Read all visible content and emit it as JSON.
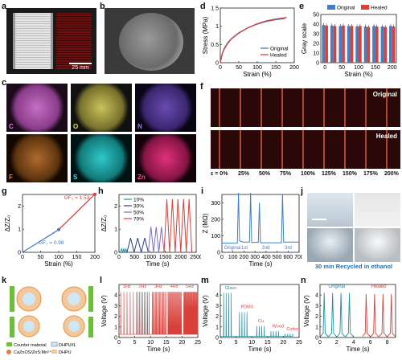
{
  "panels": {
    "a": "a",
    "b": "b",
    "c": "c",
    "d": "d",
    "e": "e",
    "f": "f",
    "g": "g",
    "h": "h",
    "i": "i",
    "j": "j",
    "k": "k",
    "l": "l",
    "m": "m",
    "n": "n"
  },
  "photo": {
    "scale": "25 mm"
  },
  "eds": [
    "C",
    "O",
    "N",
    "F",
    "S",
    "Zn"
  ],
  "f_strip": {
    "original": "Original",
    "healed": "Healed",
    "strains": [
      "ε = 0%",
      "25%",
      "50%",
      "75%",
      "100%",
      "125%",
      "150%",
      "175%",
      "200%"
    ]
  },
  "j_caption": "30 min Recycled in ethanol",
  "k_legend": [
    "Counter material",
    "CaZnOS/ZnS:Mn²⁺",
    "DHPU/IL",
    "DHPU"
  ],
  "colors": {
    "blue": "#3f7fc4",
    "red": "#d9403a",
    "teal": "#1f8fa6",
    "navy": "#2c3e8c"
  },
  "chart_data": [
    {
      "id": "d",
      "type": "line",
      "xlabel": "Strain (%)",
      "ylabel": "Stress (MPa)",
      "xlim": [
        0,
        200
      ],
      "ylim": [
        0,
        1.5
      ],
      "xticks": [
        0,
        50,
        100,
        150,
        200
      ],
      "yticks": [
        0.0,
        0.5,
        1.0,
        1.5
      ],
      "legend": [
        "Original",
        "Healed"
      ],
      "series": [
        {
          "name": "Original",
          "x": [
            0,
            5,
            10,
            20,
            30,
            50,
            75,
            100,
            125,
            150,
            175
          ],
          "y": [
            0,
            0.25,
            0.38,
            0.55,
            0.66,
            0.82,
            0.96,
            1.06,
            1.13,
            1.18,
            1.21
          ]
        },
        {
          "name": "Healed",
          "x": [
            0,
            5,
            10,
            20,
            30,
            50,
            75,
            100,
            125,
            150,
            180
          ],
          "y": [
            0,
            0.23,
            0.36,
            0.53,
            0.65,
            0.81,
            0.96,
            1.07,
            1.15,
            1.2,
            1.24
          ]
        }
      ]
    },
    {
      "id": "e",
      "type": "bar",
      "xlabel": "Strain (%)",
      "ylabel": "Gray scale",
      "ylim": [
        0,
        50
      ],
      "yticks": [
        0,
        10,
        20,
        30,
        40,
        50
      ],
      "categories": [
        "0",
        "25",
        "50",
        "75",
        "100",
        "125",
        "150",
        "175",
        "200"
      ],
      "legend": [
        "Original",
        "Healed"
      ],
      "series": [
        {
          "name": "Original",
          "values": [
            39,
            38.5,
            38,
            38,
            37.5,
            37.5,
            38,
            37.5,
            38
          ]
        },
        {
          "name": "Healed",
          "values": [
            38.5,
            38,
            38.5,
            38,
            38,
            37,
            37.5,
            37,
            37.5
          ]
        }
      ]
    },
    {
      "id": "g",
      "type": "line",
      "xlabel": "Strain (%)",
      "ylabel": "ΔZ/Z₀",
      "xlim": [
        0,
        200
      ],
      "ylim": [
        0,
        2.5
      ],
      "xticks": [
        0,
        50,
        100,
        150,
        200
      ],
      "yticks": [
        0,
        1,
        2
      ],
      "annotations": [
        "GF₂ = 1.53",
        "GF₁ = 0.98"
      ],
      "series": [
        {
          "name": "blue",
          "x": [
            0,
            20,
            40,
            60,
            80,
            100
          ],
          "y": [
            0,
            0.2,
            0.39,
            0.59,
            0.78,
            0.98
          ]
        },
        {
          "name": "red",
          "x": [
            100,
            125,
            150,
            175,
            200
          ],
          "y": [
            0.98,
            1.36,
            1.74,
            2.13,
            2.51
          ]
        }
      ]
    },
    {
      "id": "h",
      "type": "line",
      "xlabel": "Time (s)",
      "ylabel": "ΔZ/Z₀",
      "xlim": [
        0,
        2500
      ],
      "ylim": [
        0,
        2.5
      ],
      "xticks": [
        0,
        500,
        1000,
        1500,
        2000,
        2500
      ],
      "yticks": [
        0,
        1,
        2
      ],
      "legend": [
        "10%",
        "30%",
        "50%",
        "70%"
      ],
      "series": [
        {
          "name": "10%",
          "start": 50,
          "period": 70,
          "cycles": 3,
          "amp": 0.15
        },
        {
          "name": "30%",
          "start": 260,
          "period": 230,
          "cycles": 3,
          "amp": 0.62
        },
        {
          "name": "50%",
          "start": 950,
          "period": 170,
          "cycles": 3,
          "amp": 1.1
        },
        {
          "name": "70%",
          "start": 1460,
          "period": 180,
          "cycles": 5,
          "amp": 2.3
        }
      ]
    },
    {
      "id": "i",
      "type": "line",
      "xlabel": "Time (s)",
      "ylabel": "Z (MΩ)",
      "xlim": [
        0,
        700
      ],
      "ylim": [
        0,
        350
      ],
      "xticks": [
        0,
        100,
        200,
        300,
        400,
        500,
        600,
        700
      ],
      "yticks": [
        0,
        100,
        200,
        300
      ],
      "annotations": [
        "Original",
        "1st",
        "2nd",
        "3rd"
      ]
    },
    {
      "id": "l",
      "type": "line",
      "xlabel": "Time (s)",
      "ylabel": "Voltage (V)",
      "xlim": [
        0,
        25
      ],
      "ylim": [
        0,
        5
      ],
      "xticks": [
        0,
        5,
        10,
        15,
        20,
        25
      ],
      "yticks": [
        0,
        1,
        2,
        3,
        4
      ],
      "annotations": [
        "1Hz",
        "2Hz",
        "3Hz",
        "4Hz",
        "5Hz"
      ]
    },
    {
      "id": "m",
      "type": "line",
      "xlabel": "Time (s)",
      "ylabel": "Voltage (V)",
      "xlim": [
        0,
        25
      ],
      "ylim": [
        0,
        5
      ],
      "xticks": [
        0,
        5,
        10,
        15,
        20,
        25
      ],
      "yticks": [
        0,
        1,
        2,
        3,
        4
      ],
      "annotations": [
        "Glass",
        "PDMS",
        "Cu",
        "Wood",
        "Cotton"
      ],
      "groups": [
        {
          "t0": 1,
          "amp": 4.2
        },
        {
          "t0": 6,
          "amp": 2.4
        },
        {
          "t0": 11.5,
          "amp": 1.1
        },
        {
          "t0": 16,
          "amp": 0.6
        },
        {
          "t0": 20.5,
          "amp": 0.35
        }
      ]
    },
    {
      "id": "n",
      "type": "line",
      "xlabel": "Time (s)",
      "ylabel": "Voltage (V)",
      "xlim": [
        0,
        9
      ],
      "ylim": [
        0,
        5
      ],
      "xticks": [
        0,
        2,
        4,
        6,
        8
      ],
      "yticks": [
        0,
        1,
        2,
        3,
        4
      ],
      "legend": [
        "Original",
        "Healed"
      ],
      "series": [
        {
          "name": "Original",
          "peaks": [
            0.5,
            1.5,
            2.5,
            3.5
          ],
          "amp": 4.2
        },
        {
          "name": "Healed",
          "peaks": [
            5.5,
            6.5,
            7.5,
            8.5
          ],
          "amp": 4.1
        }
      ]
    }
  ]
}
